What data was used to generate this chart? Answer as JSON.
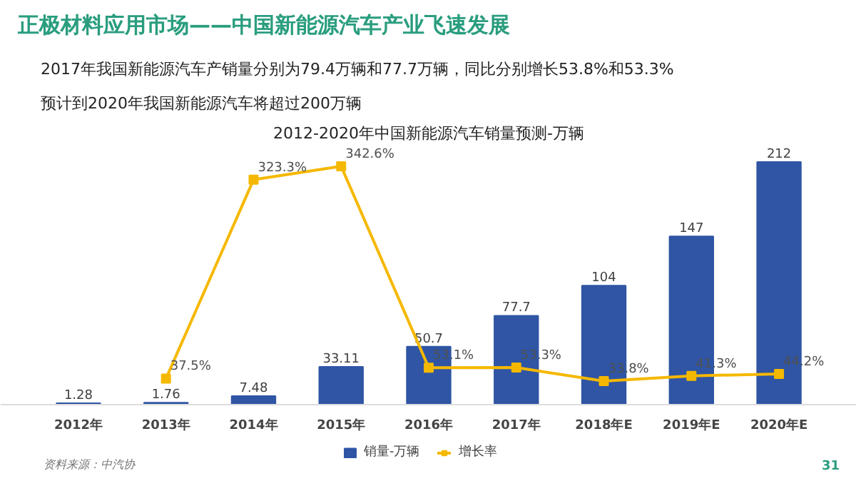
{
  "chart_data": {
    "type": "bar",
    "title": "正极材料应用市场——中国新能源汽车产业飞速发展",
    "subtitle": "2012-2020年中国新能源汽车销量预测-万辆",
    "annotations": [
      "2017年我国新能源汽车产销量分别为79.4万辆和77.7万辆，同比分别增长53.8%和53.3%",
      "预计到2020年我国新能源汽车将超过200万辆",
      "资料来源：中汽协",
      "31"
    ],
    "categories": [
      "2012年",
      "2013年",
      "2014年",
      "2015年",
      "2016年",
      "2017年",
      "2018年E",
      "2019年E",
      "2020年E"
    ],
    "series": [
      {
        "name": "销量-万辆",
        "color": "#2f55a4",
        "values": [
          1.28,
          1.76,
          7.48,
          33.11,
          50.7,
          77.7,
          104,
          147,
          212
        ],
        "value_labels": [
          "1.28",
          "1.76",
          "7.48",
          "33.11",
          "50.7",
          "77.7",
          "104",
          "147",
          "212"
        ]
      },
      {
        "name": "增长率",
        "type": "line",
        "axis": "y2",
        "color": "#f5b800",
        "values": [
          null,
          37.5,
          323.3,
          342.6,
          53.1,
          53.3,
          33.8,
          41.3,
          44.2
        ],
        "value_labels": [
          null,
          "37.5%",
          "323.3%",
          "342.6%",
          "53.1%",
          "53.3%",
          "33.8%",
          "41.3%",
          "44.2%"
        ]
      }
    ],
    "tick_labels": "x",
    "grid": false,
    "legend": "bottom",
    "marker": "square",
    "line_style": "solid"
  }
}
